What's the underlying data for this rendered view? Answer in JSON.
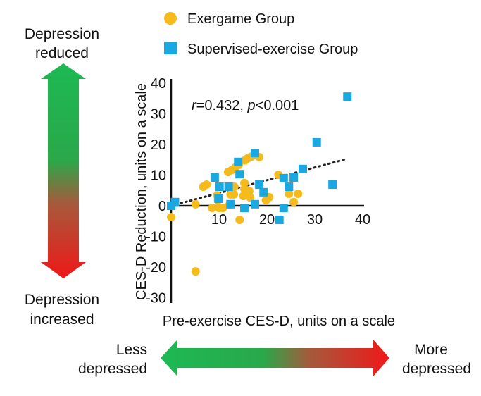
{
  "chart_data": {
    "type": "scatter",
    "xlabel": "Pre-exercise CES-D, units on a scale",
    "ylabel": "CES-D Reduction, units on a scale",
    "xlim": [
      0,
      40
    ],
    "ylim": [
      -30,
      40
    ],
    "xticks": [
      "10",
      "20",
      "30",
      "40"
    ],
    "yticks": [
      "40",
      "30",
      "20",
      "10",
      "0",
      "-10",
      "-20",
      "-30"
    ],
    "annotation": {
      "r_label": "r",
      "r_value": "=0.432, ",
      "p_label": "p",
      "p_value": "<0.001"
    },
    "legend_position": "top",
    "trendline": {
      "style": "dotted",
      "x": [
        0,
        36.5
      ],
      "y": [
        0,
        15.2
      ]
    },
    "series": [
      {
        "name": "Exergame Group",
        "marker": "circle",
        "color": "#F5BA1B",
        "points": [
          [
            18.4,
            15.9
          ],
          [
            16.8,
            16.1
          ],
          [
            16,
            15.5
          ],
          [
            15.4,
            14.8
          ],
          [
            14.1,
            13.3
          ],
          [
            13.4,
            12.5
          ],
          [
            12.7,
            11.7
          ],
          [
            11.9,
            11
          ],
          [
            7.4,
            6.9
          ],
          [
            6.7,
            6.2
          ],
          [
            22.4,
            10.1
          ],
          [
            24.6,
            3.9
          ],
          [
            26.5,
            3.9
          ],
          [
            25.6,
            1.2
          ],
          [
            15.3,
            7.4
          ],
          [
            13.2,
            6.2
          ],
          [
            15.3,
            5.5
          ],
          [
            16.3,
            4.8
          ],
          [
            16.5,
            2.7
          ],
          [
            15.1,
            3.2
          ],
          [
            19.8,
            1.8
          ],
          [
            20.5,
            2.8
          ],
          [
            12.4,
            3.7
          ],
          [
            13.1,
            3.7
          ],
          [
            12.2,
            0.4
          ],
          [
            9.6,
            3.4
          ],
          [
            9.8,
            1.8
          ],
          [
            8.6,
            -0.7
          ],
          [
            10,
            -0.7
          ],
          [
            10.8,
            -0.7
          ],
          [
            5.1,
            0.5
          ],
          [
            0,
            -3.7
          ],
          [
            14.3,
            -4.6
          ],
          [
            5.1,
            -21.4
          ]
        ]
      },
      {
        "name": "Supervised-exercise Group",
        "marker": "square",
        "color": "#1BA8E0",
        "points": [
          [
            36.8,
            35.6
          ],
          [
            30.4,
            20.7
          ],
          [
            27.5,
            12
          ],
          [
            33.7,
            6.9
          ],
          [
            25.6,
            9.2
          ],
          [
            23.5,
            9
          ],
          [
            24.6,
            6.2
          ],
          [
            23.5,
            -0.7
          ],
          [
            22.6,
            -4.6
          ],
          [
            18.4,
            6.9
          ],
          [
            19.3,
            4.4
          ],
          [
            17.5,
            0.5
          ],
          [
            17.5,
            17.2
          ],
          [
            14.3,
            10.3
          ],
          [
            14,
            14.3
          ],
          [
            15.3,
            -0.7
          ],
          [
            12.4,
            0.5
          ],
          [
            12,
            6.2
          ],
          [
            10.1,
            6.2
          ],
          [
            9.1,
            9.2
          ],
          [
            9.9,
            2.3
          ],
          [
            0.8,
            1.2
          ],
          [
            0,
            0
          ]
        ]
      }
    ]
  },
  "side_labels": {
    "top": [
      "Depression",
      "reduced"
    ],
    "bottom": [
      "Depression",
      "increased"
    ],
    "left": [
      "Less",
      "depressed"
    ],
    "right": [
      "More",
      "depressed"
    ]
  }
}
